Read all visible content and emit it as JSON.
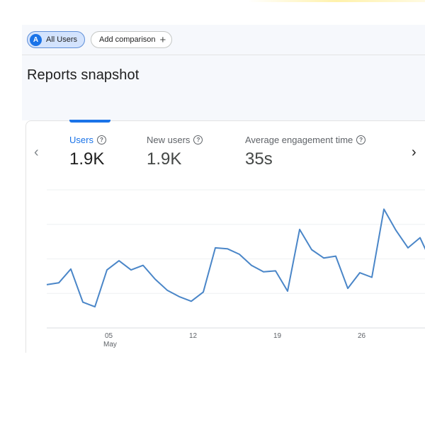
{
  "filters": {
    "all_users_avatar": "A",
    "all_users_label": "All Users",
    "add_comparison_label": "Add comparison"
  },
  "page_title": "Reports snapshot",
  "metrics": [
    {
      "label": "Users",
      "value": "1.9K"
    },
    {
      "label": "New users",
      "value": "1.9K"
    },
    {
      "label": "Average engagement time",
      "value": "35s"
    }
  ],
  "nav": {
    "prev_symbol": "‹",
    "next_symbol": "›"
  },
  "colors": {
    "accent": "#1a73e8",
    "line": "#4a86c8",
    "chip_bg": "#d3e3fd"
  },
  "icons": {
    "help": "?",
    "add": "+"
  },
  "chart_data": {
    "type": "line",
    "series": [
      {
        "metric": "Users",
        "values": [
          47,
          49,
          64,
          28,
          23,
          63,
          73,
          63,
          68,
          53,
          41,
          34,
          29,
          39,
          87,
          86,
          80,
          68,
          61,
          62,
          40,
          107,
          85,
          76,
          78,
          43,
          60,
          55,
          129,
          106,
          87,
          98,
          70
        ]
      }
    ],
    "x_tick_labels": [
      "05",
      "12",
      "19",
      "26"
    ],
    "x_tick_indices": [
      6,
      13,
      20,
      27
    ],
    "x_month_label": "May",
    "ylim": [
      0,
      150
    ],
    "grid": true
  }
}
